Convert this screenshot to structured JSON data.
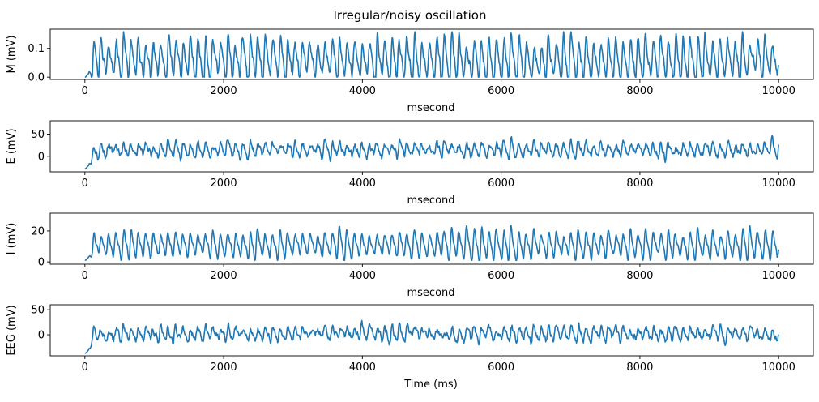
{
  "title": "Irregular/noisy oscillation",
  "colors": {
    "line": "#1f77b4",
    "axis": "#000000",
    "background": "#ffffff"
  },
  "chart_data": [
    {
      "type": "line",
      "ylabel": "M (mV)",
      "xlabel": "msecond",
      "xlim": [
        -500,
        10500
      ],
      "ylim": [
        -0.008,
        0.167
      ],
      "xticks": [
        0,
        2000,
        4000,
        6000,
        8000,
        10000
      ],
      "xtick_labels": [
        "0",
        "2000",
        "4000",
        "6000",
        "8000",
        "10000"
      ],
      "yticks": [
        0.0,
        0.1
      ],
      "ytick_labels": [
        "0.0",
        "0.1"
      ],
      "grid": false,
      "series": [
        {
          "x_range": [
            0,
            10000
          ],
          "mean": 0.06,
          "amp": 0.065,
          "vmin": 0.0,
          "vmax": 0.158,
          "cycles": 93,
          "seed": 11,
          "noise": 0.02,
          "clip_soft": true
        }
      ]
    },
    {
      "type": "line",
      "ylabel": "E (mV)",
      "xlabel": "msecond",
      "xlim": [
        -500,
        10500
      ],
      "ylim": [
        -35,
        80
      ],
      "xticks": [
        0,
        2000,
        4000,
        6000,
        8000,
        10000
      ],
      "xtick_labels": [
        "0",
        "2000",
        "4000",
        "6000",
        "8000",
        "10000"
      ],
      "yticks": [
        0,
        50
      ],
      "ytick_labels": [
        "0",
        "50"
      ],
      "grid": false,
      "series": [
        {
          "x_range": [
            0,
            10000
          ],
          "mean": 15,
          "amp": 14,
          "vmin": -28,
          "vmax": 76,
          "cycles": 93,
          "seed": 23,
          "noise": 9,
          "clip_soft": false
        }
      ]
    },
    {
      "type": "line",
      "ylabel": "I (mV)",
      "xlabel": "msecond",
      "xlim": [
        -500,
        10500
      ],
      "ylim": [
        -1.5,
        31.5
      ],
      "xticks": [
        0,
        2000,
        4000,
        6000,
        8000,
        10000
      ],
      "xtick_labels": [
        "0",
        "2000",
        "4000",
        "6000",
        "8000",
        "10000"
      ],
      "yticks": [
        0,
        20
      ],
      "ytick_labels": [
        "0",
        "20"
      ],
      "grid": false,
      "series": [
        {
          "x_range": [
            0,
            10000
          ],
          "mean": 11,
          "amp": 8,
          "vmin": 1,
          "vmax": 31,
          "cycles": 93,
          "seed": 37,
          "noise": 1.5,
          "clip_soft": false
        }
      ]
    },
    {
      "type": "line",
      "ylabel": "EEG (mV)",
      "xlabel": "Time (ms)",
      "xlim": [
        -500,
        10500
      ],
      "ylim": [
        -42,
        60
      ],
      "xticks": [
        0,
        2000,
        4000,
        6000,
        8000,
        10000
      ],
      "xtick_labels": [
        "0",
        "2000",
        "4000",
        "6000",
        "8000",
        "10000"
      ],
      "yticks": [
        0,
        50
      ],
      "ytick_labels": [
        "0",
        "50"
      ],
      "grid": false,
      "series": [
        {
          "x_range": [
            0,
            10000
          ],
          "mean": 2,
          "amp": 11,
          "vmin": -37,
          "vmax": 56,
          "cycles": 93,
          "seed": 51,
          "noise": 9,
          "clip_soft": false
        }
      ]
    }
  ]
}
